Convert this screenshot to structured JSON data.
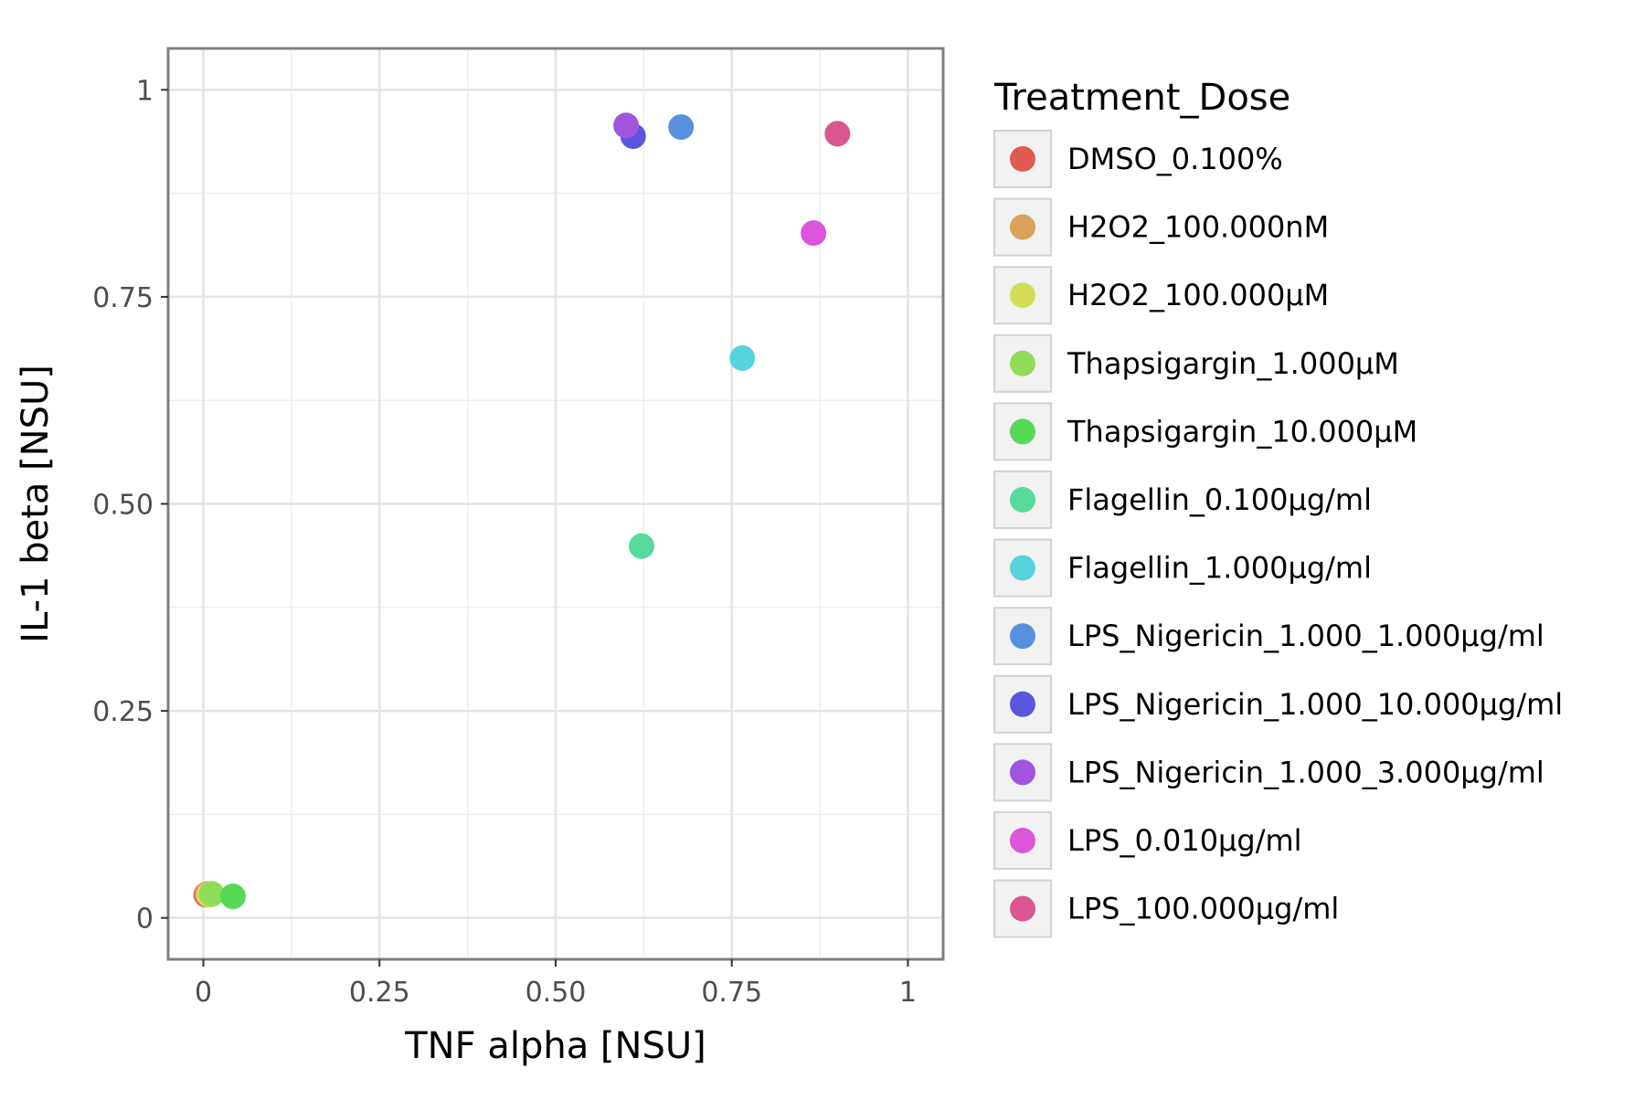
{
  "chart_data": {
    "type": "scatter",
    "xlabel": "TNF alpha [NSU]",
    "ylabel": "IL-1 beta [NSU]",
    "xlim": [
      -0.05,
      1.05
    ],
    "ylim": [
      -0.05,
      1.05
    ],
    "x_ticks": [
      {
        "value": 0,
        "label": "0"
      },
      {
        "value": 0.25,
        "label": "0.25"
      },
      {
        "value": 0.5,
        "label": "0.50"
      },
      {
        "value": 0.75,
        "label": "0.75"
      },
      {
        "value": 1,
        "label": "1"
      }
    ],
    "y_ticks": [
      {
        "value": 0,
        "label": "0"
      },
      {
        "value": 0.25,
        "label": "0.25"
      },
      {
        "value": 0.5,
        "label": "0.50"
      },
      {
        "value": 0.75,
        "label": "0.75"
      },
      {
        "value": 1,
        "label": "1"
      }
    ],
    "grid": true,
    "legend": {
      "title": "Treatment_Dose",
      "placement": "right"
    },
    "series": [
      {
        "name": "DMSO_0.100%",
        "color": "#e05a4f",
        "points": [
          {
            "x": 0.004,
            "y": 0.028
          }
        ]
      },
      {
        "name": "H2O2_100.000nM",
        "color": "#dba15a",
        "points": [
          {
            "x": 0.006,
            "y": 0.029
          }
        ]
      },
      {
        "name": "H2O2_100.000µM",
        "color": "#d4dd58",
        "points": [
          {
            "x": 0.008,
            "y": 0.028
          }
        ]
      },
      {
        "name": "Thapsigargin_1.000µM",
        "color": "#8fdc58",
        "points": [
          {
            "x": 0.012,
            "y": 0.029
          }
        ]
      },
      {
        "name": "Thapsigargin_10.000µM",
        "color": "#55d957",
        "points": [
          {
            "x": 0.042,
            "y": 0.026
          }
        ]
      },
      {
        "name": "Flagellin_0.100µg/ml",
        "color": "#57db9c",
        "points": [
          {
            "x": 0.622,
            "y": 0.449
          }
        ]
      },
      {
        "name": "Flagellin_1.000µg/ml",
        "color": "#57d3dd",
        "points": [
          {
            "x": 0.765,
            "y": 0.676
          }
        ]
      },
      {
        "name": "LPS_Nigericin_1.000_1.000µg/ml",
        "color": "#5790dd",
        "points": [
          {
            "x": 0.678,
            "y": 0.955
          }
        ]
      },
      {
        "name": "LPS_Nigericin_1.000_10.000µg/ml",
        "color": "#5b56dd",
        "points": [
          {
            "x": 0.61,
            "y": 0.944
          }
        ]
      },
      {
        "name": "LPS_Nigericin_1.000_3.000µg/ml",
        "color": "#a155dd",
        "points": [
          {
            "x": 0.6,
            "y": 0.957
          }
        ]
      },
      {
        "name": "LPS_0.010µg/ml",
        "color": "#db55d9",
        "points": [
          {
            "x": 0.866,
            "y": 0.827
          }
        ]
      },
      {
        "name": "LPS_100.000µg/ml",
        "color": "#db5590",
        "points": [
          {
            "x": 0.9,
            "y": 0.947
          }
        ]
      }
    ]
  }
}
